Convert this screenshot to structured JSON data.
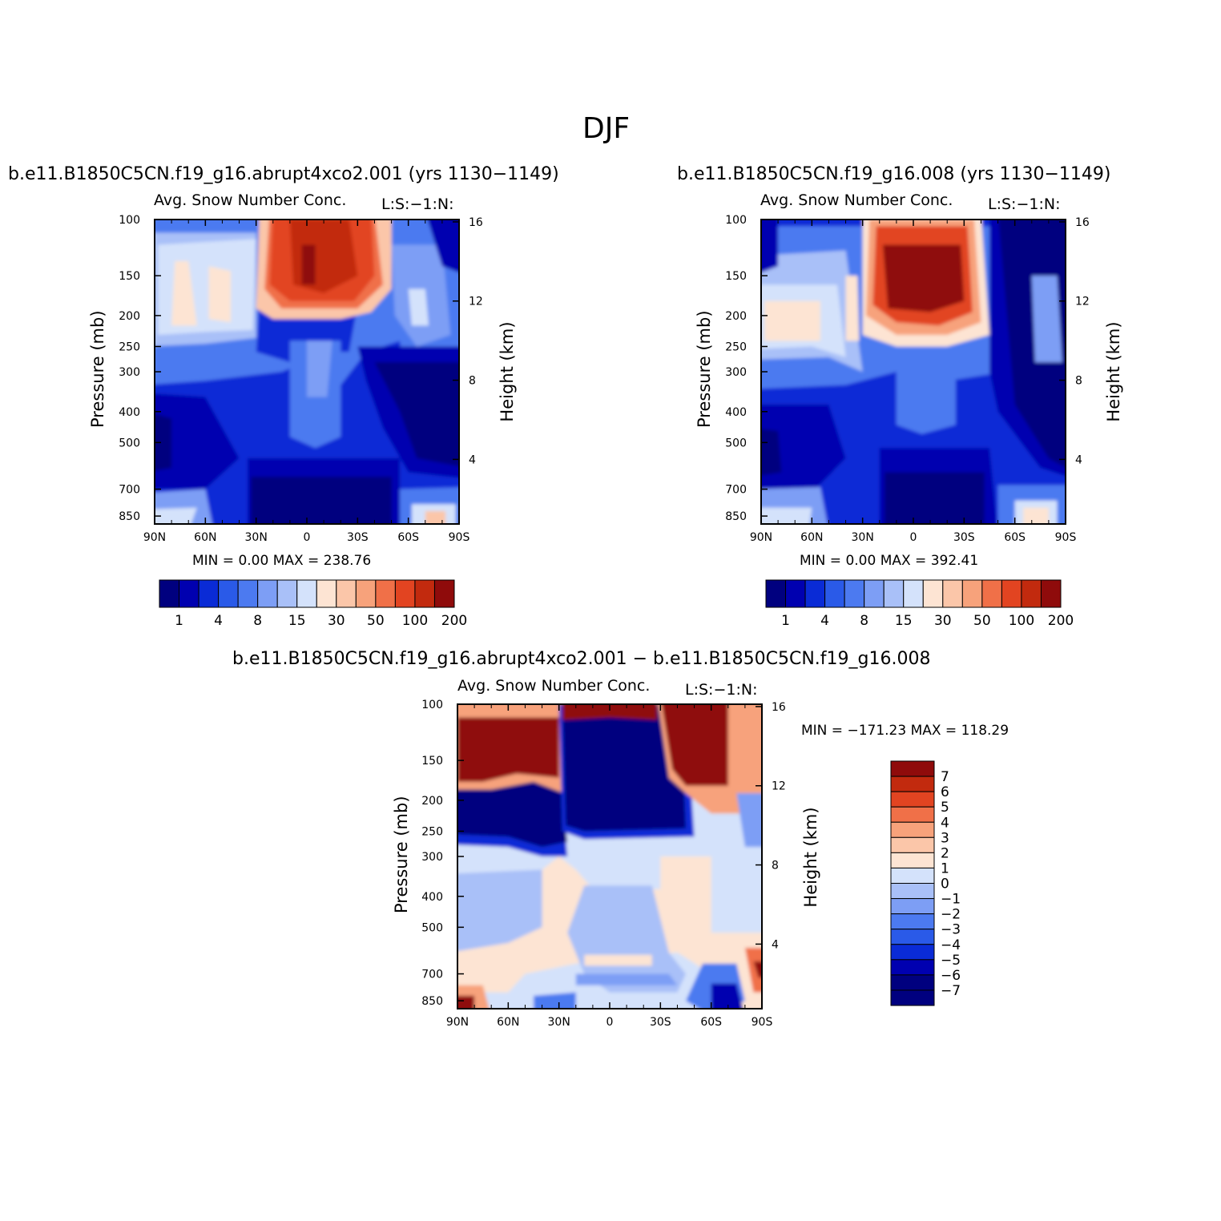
{
  "figure": {
    "title": "DJF"
  },
  "panels": [
    {
      "case_title": "b.e11.B1850C5CN.f19_g16.abrupt4xco2.001 (yrs 1130−1149)",
      "subtitle_left": "Avg. Snow Number Conc.",
      "subtitle_right": "L:S:−1:N:",
      "minmax": "MIN =    0.00   MAX = 238.76"
    },
    {
      "case_title": "b.e11.B1850C5CN.f19_g16.008 (yrs 1130−1149)",
      "subtitle_left": "Avg. Snow Number Conc.",
      "subtitle_right": "L:S:−1:N:",
      "minmax": "MIN =    0.00   MAX = 392.41"
    },
    {
      "case_title": "b.e11.B1850C5CN.f19_g16.abrupt4xco2.001 − b.e11.B1850C5CN.f19_g16.008",
      "subtitle_left": "Avg. Snow Number Conc.",
      "subtitle_right": "L:S:−1:N:",
      "minmax": "MIN = −171.23   MAX = 118.29"
    }
  ],
  "axes": {
    "ylabel_left": "Pressure (mb)",
    "ylabel_right": "Height (km)",
    "x_ticks": [
      "90N",
      "60N",
      "30N",
      "0",
      "30S",
      "60S",
      "90S"
    ],
    "p_ticks": [
      "100",
      "150",
      "200",
      "250",
      "300",
      "400",
      "500",
      "700",
      "850"
    ],
    "h_ticks": [
      "16",
      "12",
      "8",
      "4"
    ]
  },
  "colorbars": {
    "abs_labels": [
      "1",
      "4",
      "8",
      "15",
      "30",
      "50",
      "100",
      "200"
    ],
    "diff_labels": [
      "7",
      "6",
      "5",
      "4",
      "3",
      "2",
      "1",
      "0",
      "−1",
      "−2",
      "−3",
      "−4",
      "−5",
      "−6",
      "−7"
    ],
    "colors": [
      "#00007f",
      "#0000b0",
      "#0a2bd6",
      "#2a5ae8",
      "#4c7af0",
      "#7d9ef5",
      "#a9c0f8",
      "#d4e2fb",
      "#fde4d3",
      "#fbc6a9",
      "#f7a27b",
      "#f07048",
      "#e24421",
      "#c22a0e",
      "#8f0b0b"
    ]
  },
  "chart_data": [
    {
      "type": "heatmap",
      "title": "b.e11.B1850C5CN.f19_g16.abrupt4xco2.001 (yrs 1130−1149)",
      "variable": "Avg. Snow Number Conc.",
      "units_text": "L:S:−1:N:",
      "x": "latitude 90N → 90S",
      "y": "pressure 850 → 100 mb",
      "min": 0.0,
      "max": 238.76,
      "contour_levels": [
        1,
        2,
        4,
        6,
        8,
        10,
        15,
        20,
        30,
        40,
        50,
        75,
        100,
        150,
        200
      ],
      "features": [
        {
          "region": "~20N–45S, 100–200 mb",
          "level": "100–238"
        },
        {
          "region": "~90N–35N, 150–200 mb",
          "level": "30–40"
        },
        {
          "region": "~35N–55S, 700–850 mb",
          "level": "< 1"
        },
        {
          "region": "~75S–85S, 850 mb",
          "level": "15–30"
        }
      ]
    },
    {
      "type": "heatmap",
      "title": "b.e11.B1850C5CN.f19_g16.008 (yrs 1130−1149)",
      "variable": "Avg. Snow Number Conc.",
      "units_text": "L:S:−1:N:",
      "x": "latitude 90N → 90S",
      "y": "pressure 850 → 100 mb",
      "min": 0.0,
      "max": 392.41,
      "contour_levels": [
        1,
        2,
        4,
        6,
        8,
        10,
        15,
        20,
        30,
        40,
        50,
        75,
        100,
        150,
        200
      ],
      "features": [
        {
          "region": "~15N–35S, 120–200 mb",
          "level": "200–392"
        },
        {
          "region": "~90N–40N, 200 mb",
          "level": "30–40"
        },
        {
          "region": "~40S–90S, 100–500 mb",
          "level": "< 1"
        },
        {
          "region": "~70S–85S, 850 mb",
          "level": "15–30"
        }
      ]
    },
    {
      "type": "heatmap",
      "title": "b.e11.B1850C5CN.f19_g16.abrupt4xco2.001 − b.e11.B1850C5CN.f19_g16.008",
      "variable": "Avg. Snow Number Conc.",
      "units_text": "L:S:−1:N:",
      "x": "latitude 90N → 90S",
      "y": "pressure 850 → 100 mb",
      "min": -171.23,
      "max": 118.29,
      "contour_levels": [
        -7,
        -6,
        -5,
        -4,
        -3,
        -2,
        -1,
        0,
        1,
        2,
        3,
        4,
        5,
        6,
        7
      ],
      "features": [
        {
          "region": "~27N–40S, 110–250 mb",
          "level": "< −7"
        },
        {
          "region": "~90N–28N, 110–180 mb",
          "level": "> 7"
        },
        {
          "region": "~40S–65S, 100–190 mb",
          "level": "> 7"
        },
        {
          "region": "~90N–30N, 200–300 mb",
          "level": "< −7"
        },
        {
          "region": "~90N–75N, 850 mb",
          "level": "> 7"
        }
      ]
    }
  ]
}
